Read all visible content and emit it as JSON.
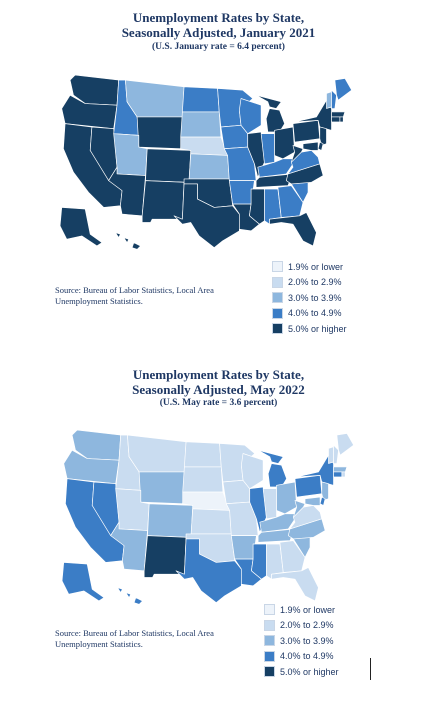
{
  "colors": {
    "c1": "#edf3fa",
    "c2": "#c9dcf0",
    "c3": "#8eb7de",
    "c4": "#3b7dc6",
    "c5": "#163f63",
    "title": "#1f3864"
  },
  "maps": [
    {
      "title_line1": "Unemployment Rates by State,",
      "title_line2": "Seasonally Adjusted, January 2021",
      "subtitle": "(U.S. January rate = 6.4 percent)",
      "source_line1": "Source: Bureau of Labor Statistics, Local Area",
      "source_line2": "Unemployment Statistics.",
      "legend": [
        {
          "label": "1.9% or lower",
          "color_key": "c1"
        },
        {
          "label": "2.0% to 2.9%",
          "color_key": "c2"
        },
        {
          "label": "3.0% to 3.9%",
          "color_key": "c3"
        },
        {
          "label": "4.0% to 4.9%",
          "color_key": "c4"
        },
        {
          "label": "5.0% or higher",
          "color_key": "c5"
        }
      ],
      "state_classes": {
        "WA": "c5",
        "OR": "c5",
        "CA": "c5",
        "NV": "c5",
        "ID": "c4",
        "MT": "c3",
        "WY": "c5",
        "UT": "c3",
        "AZ": "c5",
        "CO": "c5",
        "NM": "c5",
        "ND": "c4",
        "SD": "c3",
        "NE": "c2",
        "KS": "c3",
        "OK": "c5",
        "TX": "c5",
        "MN": "c4",
        "IA": "c4",
        "MO": "c4",
        "AR": "c4",
        "LA": "c5",
        "WI": "c4",
        "IL": "c5",
        "MI": "c5",
        "IN": "c4",
        "OH": "c5",
        "KY": "c4",
        "TN": "c5",
        "MS": "c5",
        "AL": "c4",
        "GA": "c4",
        "FL": "c5",
        "SC": "c4",
        "NC": "c5",
        "VA": "c4",
        "WV": "c5",
        "PA": "c5",
        "NY": "c5",
        "VT": "c3",
        "NH": "c4",
        "ME": "c4",
        "MA": "c5",
        "CT": "c5",
        "RI": "c5",
        "NJ": "c5",
        "DE": "c5",
        "MD": "c5",
        "AK": "c5",
        "HI": "c5"
      }
    },
    {
      "title_line1": "Unemployment Rates by State,",
      "title_line2": "Seasonally Adjusted, May 2022",
      "subtitle": "(U.S. May rate = 3.6 percent)",
      "source_line1": "Source: Bureau of Labor Statistics, Local Area",
      "source_line2": "Unemployment Statistics.",
      "legend": [
        {
          "label": "1.9% or lower",
          "color_key": "c1"
        },
        {
          "label": "2.0% to 2.9%",
          "color_key": "c2"
        },
        {
          "label": "3.0% to 3.9%",
          "color_key": "c3"
        },
        {
          "label": "4.0% to 4.9%",
          "color_key": "c4"
        },
        {
          "label": "5.0% or higher",
          "color_key": "c5"
        }
      ],
      "state_classes": {
        "WA": "c3",
        "OR": "c3",
        "CA": "c4",
        "NV": "c4",
        "ID": "c2",
        "MT": "c2",
        "WY": "c3",
        "UT": "c2",
        "AZ": "c3",
        "CO": "c3",
        "NM": "c5",
        "ND": "c2",
        "SD": "c2",
        "NE": "c1",
        "KS": "c2",
        "OK": "c2",
        "TX": "c4",
        "MN": "c2",
        "IA": "c2",
        "MO": "c2",
        "AR": "c3",
        "LA": "c4",
        "WI": "c2",
        "IL": "c4",
        "MI": "c4",
        "IN": "c2",
        "OH": "c3",
        "KY": "c3",
        "TN": "c3",
        "MS": "c4",
        "AL": "c2",
        "GA": "c2",
        "FL": "c2",
        "SC": "c3",
        "NC": "c3",
        "VA": "c2",
        "WV": "c3",
        "PA": "c4",
        "NY": "c4",
        "VT": "c2",
        "NH": "c2",
        "ME": "c2",
        "MA": "c3",
        "CT": "c4",
        "RI": "c2",
        "NJ": "c3",
        "DE": "c4",
        "MD": "c3",
        "AK": "c4",
        "HI": "c4"
      }
    }
  ]
}
